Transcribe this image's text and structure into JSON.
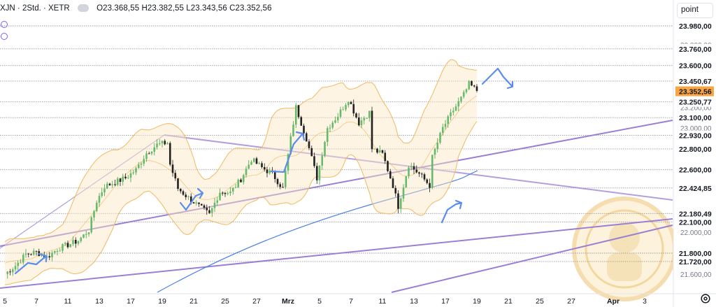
{
  "header": {
    "symbol": "XJN · 2Std. · XETR",
    "ohlc": "O23.368,55 H23.382,55 L23.343,56 C23.352,56"
  },
  "price_scale": {
    "unit_button": "point",
    "levels": [
      {
        "label": "23.980,00",
        "v": 23980,
        "line": true,
        "box": true
      },
      {
        "label": "23.760,00",
        "v": 23760,
        "line": true,
        "box": true
      },
      {
        "label": "23.600,00",
        "v": 23600,
        "line": true,
        "box": true
      },
      {
        "label": "23.450,67",
        "v": 23450.67,
        "line": true,
        "box": true
      },
      {
        "label": "23.250,77",
        "v": 23250.77,
        "line": true,
        "box": true
      },
      {
        "label": "23.100,00",
        "v": 23100,
        "line": true,
        "box": true
      },
      {
        "label": "22.930,00",
        "v": 22930,
        "line": true,
        "box": true
      },
      {
        "label": "22.800,00",
        "v": 22800,
        "line": true,
        "box": true
      },
      {
        "label": "22.600,00",
        "v": 22600,
        "line": true,
        "box": true
      },
      {
        "label": "22.424,85",
        "v": 22424.85,
        "line": true,
        "box": true
      },
      {
        "label": "22.180,49",
        "v": 22180.49,
        "line": true,
        "box": true
      },
      {
        "label": "22.100,00",
        "v": 22100,
        "line": true,
        "box": true
      },
      {
        "label": "21.800,00",
        "v": 21800,
        "line": true,
        "box": true
      },
      {
        "label": "21.720,00",
        "v": 21720,
        "line": true,
        "box": true
      }
    ],
    "ticks": [
      {
        "label": "23.800,00",
        "v": 23800
      },
      {
        "label": "23.200,00",
        "v": 23200
      },
      {
        "label": "23.000,00",
        "v": 23000
      },
      {
        "label": "22.000,00",
        "v": 22000
      },
      {
        "label": "21.600,00",
        "v": 21600
      }
    ],
    "current": {
      "label": "23.352,56",
      "v": 23352.56,
      "color": "#f7a545"
    }
  },
  "chart_data": {
    "type": "candlestick",
    "instrument": "XJN",
    "interval": "2Std.",
    "exchange": "XETR",
    "ylim": [
      21520,
      24020
    ],
    "x_ticks": [
      {
        "label": "5",
        "i": 0
      },
      {
        "label": "7",
        "i": 12
      },
      {
        "label": "11",
        "i": 24
      },
      {
        "label": "13",
        "i": 36
      },
      {
        "label": "17",
        "i": 48
      },
      {
        "label": "19",
        "i": 60
      },
      {
        "label": "21",
        "i": 72
      },
      {
        "label": "25",
        "i": 84
      },
      {
        "label": "27",
        "i": 96
      },
      {
        "label": "Mrz",
        "i": 108
      },
      {
        "label": "5",
        "i": 120
      },
      {
        "label": "7",
        "i": 132
      },
      {
        "label": "11",
        "i": 144
      },
      {
        "label": "13",
        "i": 156
      },
      {
        "label": "17",
        "i": 168
      },
      {
        "label": "19",
        "i": 180
      },
      {
        "label": "21",
        "i": 192
      },
      {
        "label": "25",
        "i": 204
      },
      {
        "label": "27",
        "i": 216
      },
      {
        "label": "Apr",
        "i": 232
      },
      {
        "label": "3",
        "i": 244
      }
    ],
    "close_path": [
      [
        0,
        21600
      ],
      [
        4,
        21680
      ],
      [
        8,
        21790
      ],
      [
        12,
        21810
      ],
      [
        16,
        21760
      ],
      [
        20,
        21840
      ],
      [
        24,
        21880
      ],
      [
        28,
        21920
      ],
      [
        32,
        22020
      ],
      [
        35,
        22300
      ],
      [
        38,
        22440
      ],
      [
        42,
        22480
      ],
      [
        46,
        22520
      ],
      [
        50,
        22600
      ],
      [
        54,
        22760
      ],
      [
        58,
        22840
      ],
      [
        62,
        22860
      ],
      [
        63,
        22650
      ],
      [
        66,
        22420
      ],
      [
        70,
        22330
      ],
      [
        74,
        22250
      ],
      [
        78,
        22170
      ],
      [
        82,
        22390
      ],
      [
        86,
        22380
      ],
      [
        90,
        22510
      ],
      [
        94,
        22700
      ],
      [
        98,
        22620
      ],
      [
        102,
        22560
      ],
      [
        106,
        22420
      ],
      [
        109,
        22900
      ],
      [
        111,
        23200
      ],
      [
        115,
        22900
      ],
      [
        119,
        22520
      ],
      [
        123,
        23000
      ],
      [
        127,
        23120
      ],
      [
        131,
        23280
      ],
      [
        135,
        23050
      ],
      [
        139,
        23150
      ],
      [
        140,
        22800
      ],
      [
        144,
        22750
      ],
      [
        148,
        22450
      ],
      [
        150,
        22250
      ],
      [
        154,
        22650
      ],
      [
        158,
        22560
      ],
      [
        162,
        22450
      ],
      [
        163,
        22720
      ],
      [
        167,
        23000
      ],
      [
        171,
        23170
      ],
      [
        175,
        23320
      ],
      [
        177,
        23420
      ],
      [
        180,
        23360
      ]
    ],
    "overlays": {
      "bollinger": "orange bands with shaded fill",
      "moving_average": "blue line"
    }
  },
  "drawings": {
    "colors": {
      "trend": "#9b7fd4",
      "arrow": "#5b8def",
      "band": "#f0b961",
      "ma": "#4a7fe8"
    }
  }
}
